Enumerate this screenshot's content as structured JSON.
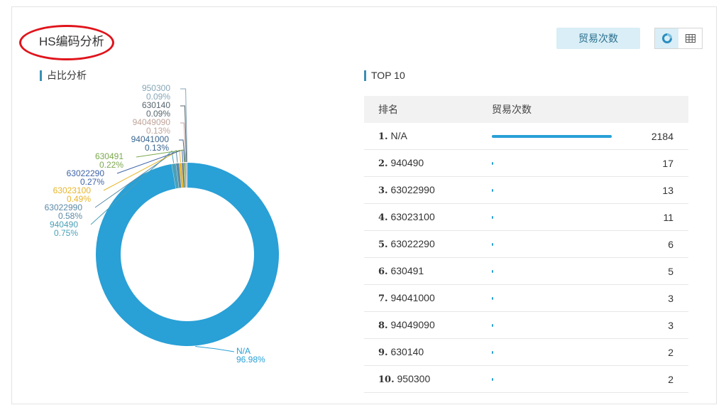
{
  "header": {
    "title": "HS编码分析",
    "metric_button": "贸易次数"
  },
  "view_toggle": {
    "active": "chart",
    "icons": [
      "donut-chart-icon",
      "table-grid-icon"
    ]
  },
  "left_section": {
    "label": "占比分析"
  },
  "right_section": {
    "label": "TOP 10",
    "columns": [
      "排名",
      "贸易次数"
    ]
  },
  "colors": {
    "accent": "#29a0d6",
    "highlight_oval": "#e0141b"
  },
  "chart_data": {
    "type": "pie",
    "variant": "donut",
    "slices": [
      {
        "label": "N/A",
        "percent": "96.98%",
        "value": 96.98,
        "color": "#29a0d6"
      },
      {
        "label": "940490",
        "percent": "0.75%",
        "value": 0.75,
        "color": "#4aa0b6"
      },
      {
        "label": "63022990",
        "percent": "0.58%",
        "value": 0.58,
        "color": "#5b8aa6"
      },
      {
        "label": "63023100",
        "percent": "0.49%",
        "value": 0.49,
        "color": "#e8b528"
      },
      {
        "label": "63022290",
        "percent": "0.27%",
        "value": 0.27,
        "color": "#3f63a8"
      },
      {
        "label": "630491",
        "percent": "0.22%",
        "value": 0.22,
        "color": "#7ba94e"
      },
      {
        "label": "94041000",
        "percent": "0.13%",
        "value": 0.13,
        "color": "#3a6690"
      },
      {
        "label": "94049090",
        "percent": "0.13%",
        "value": 0.13,
        "color": "#c0a49a"
      },
      {
        "label": "630140",
        "percent": "0.09%",
        "value": 0.09,
        "color": "#56666e"
      },
      {
        "label": "950300",
        "percent": "0.09%",
        "value": 0.09,
        "color": "#86a6b8"
      }
    ]
  },
  "top10": [
    {
      "rank": "1.",
      "name": "N/A",
      "value": 2184
    },
    {
      "rank": "2.",
      "name": "940490",
      "value": 17
    },
    {
      "rank": "3.",
      "name": "63022990",
      "value": 13
    },
    {
      "rank": "4.",
      "name": "63023100",
      "value": 11
    },
    {
      "rank": "5.",
      "name": "63022290",
      "value": 6
    },
    {
      "rank": "6.",
      "name": "630491",
      "value": 5
    },
    {
      "rank": "7.",
      "name": "94041000",
      "value": 3
    },
    {
      "rank": "8.",
      "name": "94049090",
      "value": 3
    },
    {
      "rank": "9.",
      "name": "630140",
      "value": 2
    },
    {
      "rank": "10.",
      "name": "950300",
      "value": 2
    }
  ]
}
